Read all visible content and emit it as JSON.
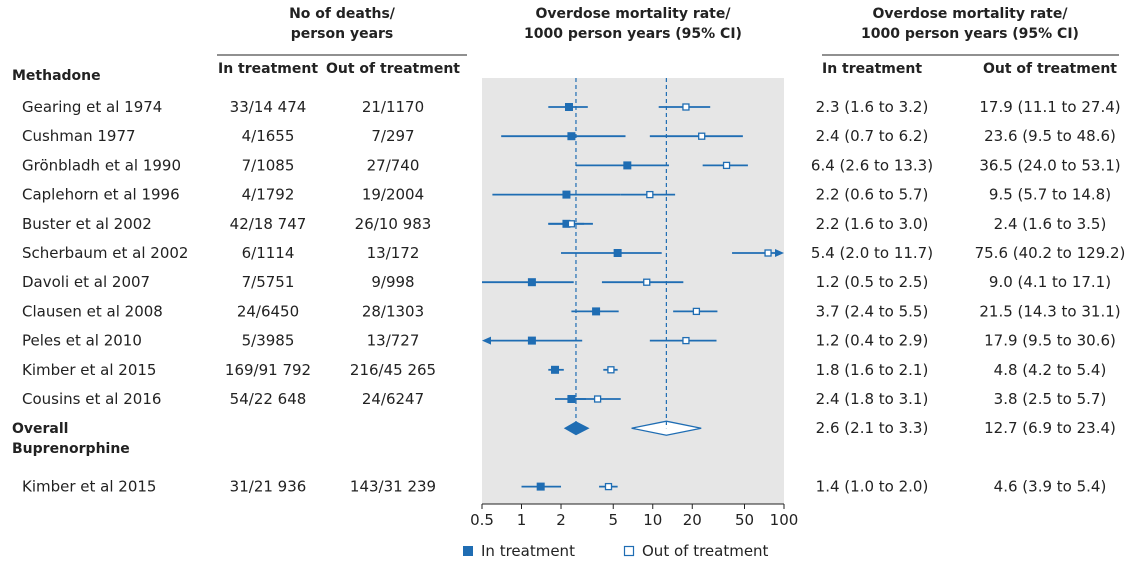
{
  "headers": {
    "counts_line1": "No of deaths/",
    "counts_line2": "person years",
    "plot_line1": "Overdose mortality rate/",
    "plot_line2": "1000 person years (95% CI)",
    "rates_line1": "Overdose mortality rate/",
    "rates_line2": "1000 person years (95% CI)",
    "in_treatment": "In treatment",
    "out_of_treatment": "Out of treatment"
  },
  "legend": {
    "in_treatment": "In treatment",
    "out_of_treatment": "Out of treatment"
  },
  "chart_data": {
    "type": "forest",
    "x_scale": "log",
    "xlim": [
      0.5,
      100
    ],
    "x_ticks": [
      0.5,
      1,
      2,
      5,
      10,
      20,
      50,
      100
    ],
    "x_tick_labels": [
      "0.5",
      "1",
      "2",
      "5",
      "10",
      "20",
      "50",
      "100"
    ],
    "reference_lines": {
      "in_treatment": 2.6,
      "out_of_treatment": 12.7
    },
    "colors": {
      "marker": "#1f6db3",
      "reference": "#1f6db3",
      "panel": "#e6e6e6"
    },
    "groups": [
      {
        "label": "Methadone",
        "studies": [
          {
            "name": "Gearing et al 1974",
            "in_counts": "33/14 474",
            "out_counts": "21/1170",
            "in": {
              "est": 2.3,
              "lo": 1.6,
              "hi": 3.2
            },
            "out": {
              "est": 17.9,
              "lo": 11.1,
              "hi": 27.4
            },
            "in_text": "2.3 (1.6 to 3.2)",
            "out_text": "17.9 (11.1 to 27.4)"
          },
          {
            "name": "Cushman 1977",
            "in_counts": "4/1655",
            "out_counts": "7/297",
            "in": {
              "est": 2.4,
              "lo": 0.7,
              "hi": 6.2
            },
            "out": {
              "est": 23.6,
              "lo": 9.5,
              "hi": 48.6
            },
            "in_text": "2.4 (0.7 to 6.2)",
            "out_text": "23.6 (9.5 to 48.6)"
          },
          {
            "name": "Grönbladh et al 1990",
            "in_counts": "7/1085",
            "out_counts": "27/740",
            "in": {
              "est": 6.4,
              "lo": 2.6,
              "hi": 13.3
            },
            "out": {
              "est": 36.5,
              "lo": 24.0,
              "hi": 53.1
            },
            "in_text": "6.4 (2.6 to 13.3)",
            "out_text": "36.5 (24.0 to 53.1)"
          },
          {
            "name": "Caplehorn et al 1996",
            "in_counts": "4/1792",
            "out_counts": "19/2004",
            "in": {
              "est": 2.2,
              "lo": 0.6,
              "hi": 5.7
            },
            "out": {
              "est": 9.5,
              "lo": 5.7,
              "hi": 14.8
            },
            "in_text": "2.2 (0.6 to 5.7)",
            "out_text": "9.5 (5.7 to 14.8)"
          },
          {
            "name": "Buster et al 2002",
            "in_counts": "42/18 747",
            "out_counts": "26/10 983",
            "in": {
              "est": 2.2,
              "lo": 1.6,
              "hi": 3.0
            },
            "out": {
              "est": 2.4,
              "lo": 1.6,
              "hi": 3.5
            },
            "in_text": "2.2 (1.6 to 3.0)",
            "out_text": "2.4 (1.6 to 3.5)"
          },
          {
            "name": "Scherbaum et al 2002",
            "in_counts": "6/1114",
            "out_counts": "13/172",
            "in": {
              "est": 5.4,
              "lo": 2.0,
              "hi": 11.7
            },
            "out": {
              "est": 75.6,
              "lo": 40.2,
              "hi": 129.2
            },
            "in_text": "5.4 (2.0 to 11.7)",
            "out_text": "75.6 (40.2 to 129.2)"
          },
          {
            "name": "Davoli et al 2007",
            "in_counts": "7/5751",
            "out_counts": "9/998",
            "in": {
              "est": 1.2,
              "lo": 0.5,
              "hi": 2.5
            },
            "out": {
              "est": 9.0,
              "lo": 4.1,
              "hi": 17.1
            },
            "in_text": "1.2 (0.5 to 2.5)",
            "out_text": "9.0 (4.1 to 17.1)"
          },
          {
            "name": "Clausen et al 2008",
            "in_counts": "24/6450",
            "out_counts": "28/1303",
            "in": {
              "est": 3.7,
              "lo": 2.4,
              "hi": 5.5
            },
            "out": {
              "est": 21.5,
              "lo": 14.3,
              "hi": 31.1
            },
            "in_text": "3.7 (2.4 to 5.5)",
            "out_text": "21.5 (14.3 to 31.1)"
          },
          {
            "name": "Peles et al 2010",
            "in_counts": "5/3985",
            "out_counts": "13/727",
            "in": {
              "est": 1.2,
              "lo": 0.4,
              "hi": 2.9
            },
            "out": {
              "est": 17.9,
              "lo": 9.5,
              "hi": 30.6
            },
            "in_text": "1.2 (0.4 to 2.9)",
            "out_text": "17.9 (9.5 to 30.6)"
          },
          {
            "name": "Kimber et al 2015",
            "in_counts": "169/91 792",
            "out_counts": "216/45 265",
            "in": {
              "est": 1.8,
              "lo": 1.6,
              "hi": 2.1
            },
            "out": {
              "est": 4.8,
              "lo": 4.2,
              "hi": 5.4
            },
            "in_text": "1.8 (1.6 to 2.1)",
            "out_text": "4.8 (4.2 to 5.4)"
          },
          {
            "name": "Cousins et al 2016",
            "in_counts": "54/22 648",
            "out_counts": "24/6247",
            "in": {
              "est": 2.4,
              "lo": 1.8,
              "hi": 3.1
            },
            "out": {
              "est": 3.8,
              "lo": 2.5,
              "hi": 5.7
            },
            "in_text": "2.4 (1.8 to 3.1)",
            "out_text": "3.8 (2.5 to 5.7)"
          }
        ],
        "overall": {
          "label": "Overall",
          "in": {
            "est": 2.6,
            "lo": 2.1,
            "hi": 3.3
          },
          "out": {
            "est": 12.7,
            "lo": 6.9,
            "hi": 23.4
          },
          "in_text": "2.6 (2.1 to 3.3)",
          "out_text": "12.7 (6.9 to 23.4)"
        }
      },
      {
        "label": "Buprenorphine",
        "studies": [
          {
            "name": "Kimber et al 2015",
            "in_counts": "31/21 936",
            "out_counts": "143/31 239",
            "in": {
              "est": 1.4,
              "lo": 1.0,
              "hi": 2.0
            },
            "out": {
              "est": 4.6,
              "lo": 3.9,
              "hi": 5.4
            },
            "in_text": "1.4 (1.0 to 2.0)",
            "out_text": "4.6 (3.9 to 5.4)"
          }
        ]
      }
    ]
  }
}
